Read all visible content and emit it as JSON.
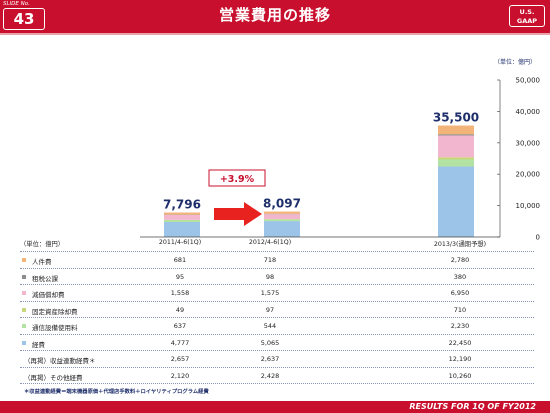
{
  "header": {
    "slide_no_label": "SLIDE No.",
    "slide_no": "43",
    "title": "営業費用の推移",
    "gaap_line1": "U.S.",
    "gaap_line2": "GAAP"
  },
  "colors": {
    "brand": "#c8102e",
    "personnel": "#f3b47a",
    "taxes": "#8c8c8c",
    "depreciation": "#f2b6cf",
    "disposal": "#c9d77a",
    "comm_equipment": "#b3e3a3",
    "expenses": "#9cc3e8",
    "growth_box_border": "#c8102e"
  },
  "unit_top": "（単位：億円）",
  "growth_label": "+3.9%",
  "chart_data": {
    "type": "bar",
    "stacked": true,
    "categories": [
      "2011/4-6(1Q)",
      "2012/4-6(1Q)",
      "2013/3(通期予想)"
    ],
    "series": [
      {
        "name": "経費",
        "values": [
          4777,
          5065,
          22450
        ]
      },
      {
        "name": "通信設備使用料",
        "values": [
          637,
          544,
          2230
        ]
      },
      {
        "name": "固定資産除却費",
        "values": [
          49,
          97,
          710
        ]
      },
      {
        "name": "減価償却費",
        "values": [
          1558,
          1575,
          6950
        ]
      },
      {
        "name": "租税公課",
        "values": [
          95,
          98,
          380
        ]
      },
      {
        "name": "人件費",
        "values": [
          681,
          718,
          2780
        ]
      }
    ],
    "totals": [
      "7,796",
      "8,097",
      "35,500"
    ],
    "ylim": [
      0,
      50000
    ],
    "yticks": [
      "0",
      "10,000",
      "20,000",
      "30,000",
      "40,000",
      "50,000"
    ],
    "grid": false,
    "legend": "table-below"
  },
  "table": {
    "unit_label": "（単位：億円）",
    "rows": [
      {
        "label": "人件費",
        "swatch": "personnel",
        "values": [
          "681",
          "718",
          "2,780"
        ]
      },
      {
        "label": "租税公課",
        "swatch": "taxes",
        "values": [
          "95",
          "98",
          "380"
        ]
      },
      {
        "label": "減価償却費",
        "swatch": "depreciation",
        "values": [
          "1,558",
          "1,575",
          "6,950"
        ]
      },
      {
        "label": "固定資産除却費",
        "swatch": "disposal",
        "values": [
          "49",
          "97",
          "710"
        ]
      },
      {
        "label": "通信設備使用料",
        "swatch": "comm_equipment",
        "values": [
          "637",
          "544",
          "2,230"
        ]
      },
      {
        "label": "経費",
        "swatch": "expenses",
        "values": [
          "4,777",
          "5,065",
          "22,450"
        ]
      },
      {
        "label": "（再掲）収益連動経費＊",
        "swatch": "",
        "values": [
          "2,657",
          "2,637",
          "12,190"
        ]
      },
      {
        "label": "（再掲）その他経費",
        "swatch": "",
        "values": [
          "2,120",
          "2,428",
          "10,260"
        ]
      }
    ]
  },
  "footnote": "＊収益連動経費＝端末機器原価＋代理店手数料＋ロイヤリティプログラム経費",
  "footer": "RESULTS FOR 1Q OF FY2012"
}
